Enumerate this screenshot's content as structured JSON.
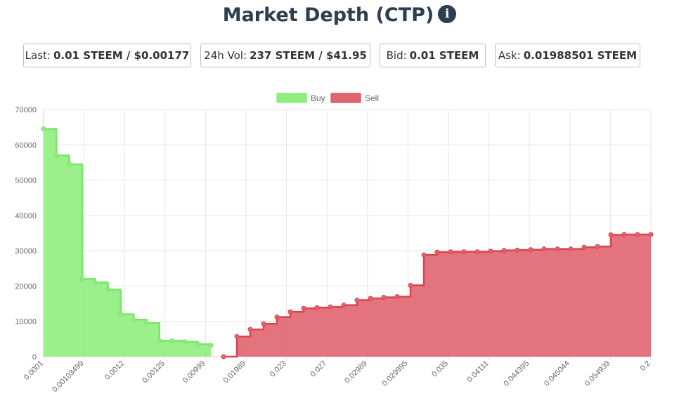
{
  "title": "Market Depth (CTP)",
  "info_icon": "info-circle-icon",
  "stats": [
    {
      "label": "Last:",
      "value": "0.01 STEEM / $0.00177"
    },
    {
      "label": "24h Vol:",
      "value": "237 STEEM / $41.95"
    },
    {
      "label": "Bid:",
      "value": "0.01 STEEM"
    },
    {
      "label": "Ask:",
      "value": "0.01988501 STEEM"
    }
  ],
  "chart_data": {
    "type": "area",
    "x_tick_labels": [
      "0.0001",
      "0.00103499",
      "0.0012",
      "0.00125",
      "0.00999",
      "0.01989",
      "0.023",
      "0.027",
      "0.02989",
      "0.029995",
      "0.035",
      "0.04111",
      "0.044395",
      "0.045044",
      "0.054939",
      "0.2"
    ],
    "y_ticks": [
      0,
      10000,
      20000,
      30000,
      40000,
      50000,
      60000,
      70000
    ],
    "ylim": [
      0,
      70000
    ],
    "grid": true,
    "legend_position": "top-center",
    "series": [
      {
        "name": "Buy",
        "color": "#90ee7e",
        "stroke": "#7be26a",
        "values": [
          64500,
          57000,
          54500,
          22000,
          21000,
          19000,
          12000,
          10500,
          9500,
          4500,
          4500,
          4200,
          3500,
          3200
        ]
      },
      {
        "name": "Sell",
        "color": "#e0656f",
        "stroke": "#d9434f",
        "values": [
          0,
          5700,
          7700,
          9300,
          11200,
          12700,
          13700,
          13900,
          14100,
          14600,
          16000,
          16500,
          16800,
          17000,
          20200,
          28800,
          29600,
          29700,
          29700,
          29700,
          29900,
          30100,
          30200,
          30300,
          30500,
          30500,
          30500,
          31000,
          31200,
          34500,
          34600,
          34600,
          34600
        ]
      }
    ]
  }
}
